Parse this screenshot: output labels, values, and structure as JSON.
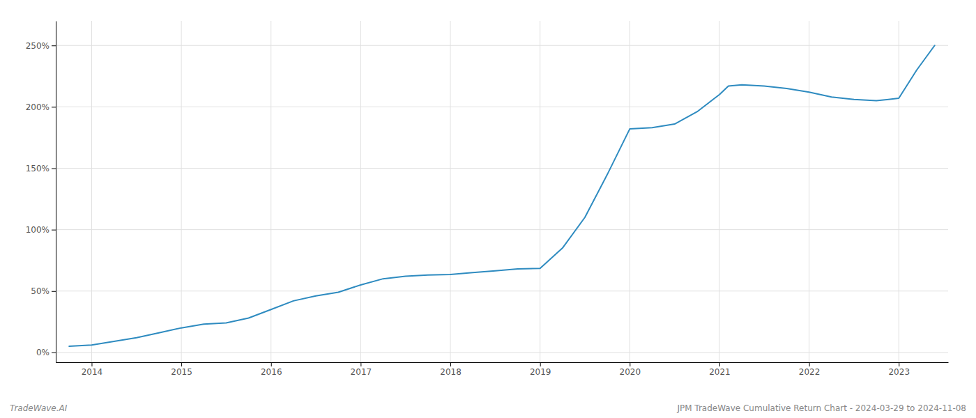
{
  "chart_data": {
    "type": "line",
    "x": [
      2013.75,
      2014.0,
      2014.25,
      2014.5,
      2014.75,
      2015.0,
      2015.25,
      2015.5,
      2015.75,
      2016.0,
      2016.25,
      2016.5,
      2016.75,
      2017.0,
      2017.25,
      2017.5,
      2017.75,
      2018.0,
      2018.25,
      2018.5,
      2018.75,
      2019.0,
      2019.25,
      2019.5,
      2019.75,
      2020.0,
      2020.25,
      2020.5,
      2020.75,
      2021.0,
      2021.1,
      2021.25,
      2021.5,
      2021.75,
      2022.0,
      2022.25,
      2022.5,
      2022.75,
      2023.0,
      2023.2,
      2023.4
    ],
    "values": [
      5.0,
      6.0,
      9.0,
      12.0,
      16.0,
      20.0,
      23.0,
      24.0,
      28.0,
      35.0,
      42.0,
      46.0,
      49.0,
      55.0,
      60.0,
      62.0,
      63.0,
      63.5,
      65.0,
      66.5,
      68.0,
      68.5,
      85.0,
      110.0,
      145.0,
      182.0,
      183.0,
      186.0,
      196.0,
      210.0,
      217.0,
      218.0,
      217.0,
      215.0,
      212.0,
      208.0,
      206.0,
      205.0,
      207.0,
      230.0,
      250.0
    ],
    "color": "#2e8bc0",
    "xlim": [
      2013.6,
      2023.55
    ],
    "xticks": [
      2014,
      2015,
      2016,
      2017,
      2018,
      2019,
      2020,
      2021,
      2022,
      2023
    ],
    "ylim": [
      -8,
      270
    ],
    "yticks": [
      {
        "value": 0,
        "label": "0%"
      },
      {
        "value": 50,
        "label": "50%"
      },
      {
        "value": 100,
        "label": "100%"
      },
      {
        "value": 150,
        "label": "150%"
      },
      {
        "value": 200,
        "label": "200%"
      },
      {
        "value": 250,
        "label": "250%"
      }
    ],
    "grid": true,
    "annotations": [
      "TradeWave.AI",
      "JPM TradeWave Cumulative Return Chart - 2024-03-29 to 2024-11-08"
    ]
  }
}
